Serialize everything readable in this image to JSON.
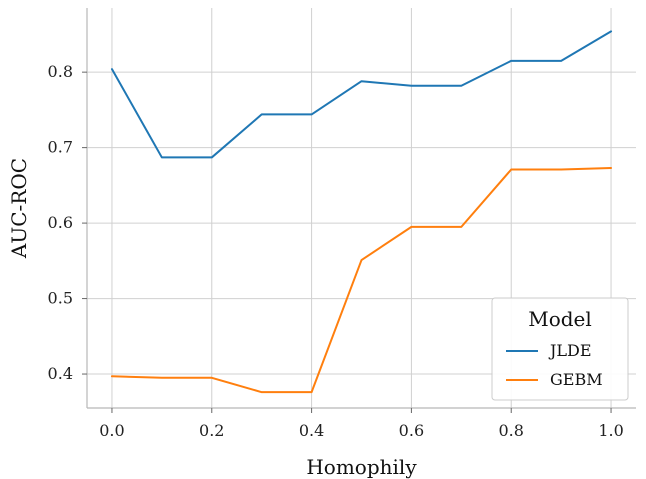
{
  "chart_data": {
    "type": "line",
    "title": "",
    "xlabel": "Homophily",
    "ylabel": "AUC-ROC",
    "xlim": [
      -0.05,
      1.05
    ],
    "ylim": [
      0.355,
      0.885
    ],
    "xticks": [
      0.0,
      0.2,
      0.4,
      0.6,
      0.8,
      1.0
    ],
    "xtick_labels": [
      "0.0",
      "0.2",
      "0.4",
      "0.6",
      "0.8",
      "1.0"
    ],
    "yticks": [
      0.4,
      0.5,
      0.6,
      0.7,
      0.8
    ],
    "ytick_labels": [
      "0.4",
      "0.5",
      "0.6",
      "0.7",
      "0.8"
    ],
    "grid": true,
    "legend": {
      "title": "Model",
      "placement": "lower-right"
    },
    "x": [
      0.0,
      0.1,
      0.2,
      0.3,
      0.4,
      0.5,
      0.6,
      0.7,
      0.8,
      0.9,
      1.0
    ],
    "series": [
      {
        "name": "JLDE",
        "color": "#1f77b4",
        "values": [
          0.804,
          0.687,
          0.687,
          0.744,
          0.744,
          0.788,
          0.782,
          0.782,
          0.815,
          0.815,
          0.854
        ]
      },
      {
        "name": "GEBM",
        "color": "#ff7f0e",
        "values": [
          0.397,
          0.395,
          0.395,
          0.376,
          0.376,
          0.551,
          0.595,
          0.595,
          0.671,
          0.671,
          0.673
        ]
      }
    ]
  }
}
